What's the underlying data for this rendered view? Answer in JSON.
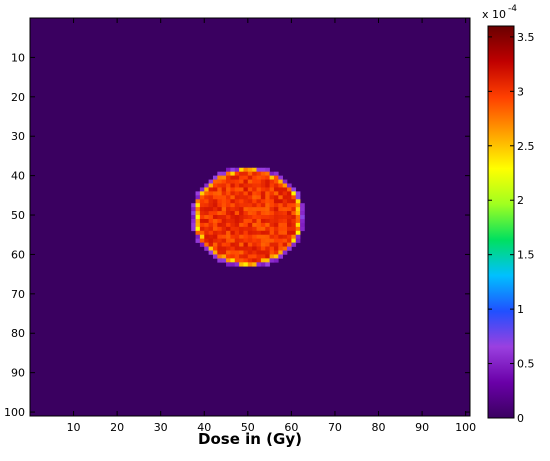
{
  "chart_data": {
    "type": "heatmap",
    "title": "",
    "xlabel": "Dose in (Gy)",
    "ylabel": "",
    "xlim": [
      0,
      101
    ],
    "ylim": [
      0,
      101
    ],
    "x_ticks": [
      10,
      20,
      30,
      40,
      50,
      60,
      70,
      80,
      90,
      100
    ],
    "y_ticks": [
      10,
      20,
      30,
      40,
      50,
      60,
      70,
      80,
      90,
      100
    ],
    "y_axis_direction": "downward",
    "background_value": 0,
    "hotspot": {
      "center_x": 50,
      "center_y": 50.5,
      "radius": 12,
      "value": 3.0,
      "edge_value": 2.6
    },
    "colorbar": {
      "min": 0,
      "max": 3.6,
      "ticks": [
        0,
        0.5,
        1,
        1.5,
        2,
        2.5,
        3,
        3.5
      ],
      "multiplier_label": "x 10",
      "multiplier_exponent": "-4",
      "colormap": [
        "#3a0060",
        "#6a00a8",
        "#9a40e0",
        "#2050ff",
        "#00c0ff",
        "#00e060",
        "#a0ff20",
        "#ffff00",
        "#ffa000",
        "#ff4000",
        "#c00000",
        "#6a0000"
      ]
    }
  }
}
